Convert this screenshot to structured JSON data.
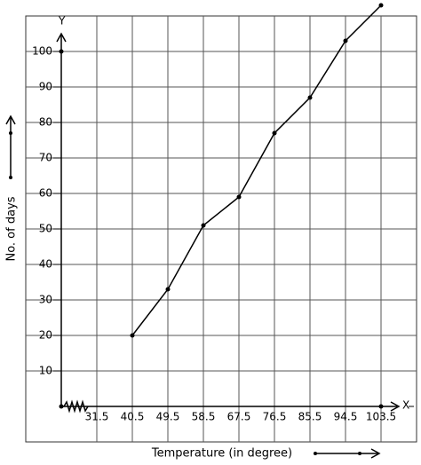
{
  "chart_data": {
    "type": "line",
    "x_axis_name": "X",
    "y_axis_name": "Y",
    "x_label": "Temperature (in degree)",
    "y_label": "No. of days",
    "x": [
      40.5,
      49.5,
      58.5,
      67.5,
      76.5,
      85.5,
      94.5,
      103.5
    ],
    "series": [
      {
        "color": "#000000",
        "values": [
          20,
          33,
          51,
          59,
          77,
          87,
          103,
          113
        ]
      }
    ],
    "xlim": [
      13.5,
      112.5
    ],
    "ylim": [
      -10,
      110
    ],
    "xticks": [
      31.5,
      40.5,
      49.5,
      58.5,
      67.5,
      76.5,
      85.5,
      94.5,
      103.5
    ],
    "yticks": [
      10,
      20,
      30,
      40,
      50,
      60,
      70,
      80,
      90,
      100
    ],
    "grid": true
  }
}
